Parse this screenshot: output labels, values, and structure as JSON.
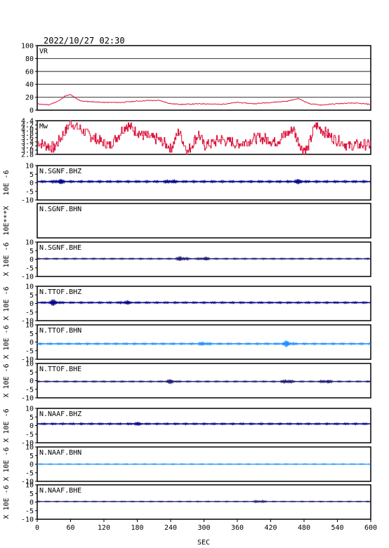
{
  "header": {
    "timestamp": "2022/10/27 02:30"
  },
  "x_axis": {
    "label": "SEC",
    "ticks": [
      "0",
      "60",
      "120",
      "180",
      "240",
      "300",
      "360",
      "420",
      "480",
      "540",
      "600"
    ],
    "range": [
      0,
      600
    ]
  },
  "chart_data": [
    {
      "type": "line",
      "label": "VR",
      "color": "#dc143c",
      "ylim": [
        0,
        100
      ],
      "yticks": [
        "0",
        "20",
        "40",
        "60",
        "80",
        "100"
      ],
      "grid": true,
      "x": [
        0,
        20,
        40,
        50,
        60,
        70,
        80,
        100,
        120,
        150,
        180,
        200,
        220,
        240,
        260,
        300,
        330,
        360,
        390,
        420,
        450,
        470,
        490,
        510,
        540,
        570,
        600
      ],
      "values": [
        10,
        8,
        15,
        22,
        24,
        18,
        14,
        13,
        12,
        12,
        14,
        15,
        15,
        10,
        9,
        10,
        9,
        12,
        10,
        12,
        14,
        18,
        10,
        8,
        10,
        11,
        9
      ]
    },
    {
      "type": "line",
      "label": "Mw",
      "color": "#dc143c",
      "ylim": [
        2.8,
        4.4
      ],
      "yticks": [
        "2.8",
        "3.0",
        "3.2",
        "3.4",
        "3.6",
        "3.8",
        "4.0",
        "4.2",
        "4.4"
      ],
      "x": [
        0,
        30,
        60,
        100,
        130,
        160,
        190,
        220,
        240,
        255,
        270,
        290,
        300,
        330,
        360,
        400,
        430,
        460,
        475,
        485,
        500,
        530,
        560,
        600
      ],
      "values": [
        3.4,
        3.1,
        4.3,
        3.6,
        3.2,
        4.2,
        3.7,
        3.5,
        3.1,
        3.9,
        2.9,
        3.8,
        3.2,
        3.5,
        3.3,
        3.6,
        3.4,
        4.0,
        3.1,
        3.0,
        4.2,
        3.6,
        3.2,
        3.3
      ]
    },
    {
      "type": "line",
      "label": "N.SGNF.BHZ",
      "color": "#00008b",
      "ylim": [
        -10,
        10
      ],
      "yticks": [
        "-10",
        "-5",
        "0",
        "5",
        "10"
      ],
      "ylabel": "10E -6",
      "offset": 0.7,
      "amplitude": 0.6,
      "bursts": [
        [
          40,
          1.2
        ],
        [
          240,
          0.9
        ],
        [
          470,
          1.0
        ]
      ]
    },
    {
      "type": "line",
      "label": "N.SGNF.BHN",
      "color": "#00008b",
      "ylabel": "10E***X",
      "empty": true
    },
    {
      "type": "line",
      "label": "N.SGNF.BHE",
      "color": "#191970",
      "ylim": [
        -10,
        10
      ],
      "yticks": [
        "-10",
        "-5",
        "0",
        "5",
        "10"
      ],
      "ylabel": "X  10E -6",
      "offset": 0.3,
      "amplitude": 0.4,
      "bursts": [
        [
          260,
          1.2
        ],
        [
          300,
          0.8
        ]
      ]
    },
    {
      "type": "line",
      "label": "N.TTOF.BHZ",
      "color": "#00008b",
      "ylim": [
        -10,
        10
      ],
      "yticks": [
        "-10",
        "-5",
        "0",
        "5",
        "10"
      ],
      "ylabel": "X  10E -6",
      "offset": 0.5,
      "amplitude": 0.5,
      "bursts": [
        [
          30,
          1.5
        ],
        [
          160,
          0.8
        ]
      ]
    },
    {
      "type": "line",
      "label": "N.TTOF.BHN",
      "color": "#1e90ff",
      "ylim": [
        -10,
        10
      ],
      "yticks": [
        "-10",
        "-5",
        "0",
        "5",
        "10"
      ],
      "ylabel": "X  10E -6",
      "offset": -1.0,
      "amplitude": 0.5,
      "bursts": [
        [
          300,
          0.8
        ],
        [
          450,
          1.6
        ]
      ]
    },
    {
      "type": "line",
      "label": "N.TTOF.BHE",
      "color": "#191970",
      "ylim": [
        -10,
        10
      ],
      "yticks": [
        "-10",
        "-5",
        "0",
        "5",
        "10"
      ],
      "ylabel": "X  10E -6",
      "offset": -0.5,
      "amplitude": 0.4,
      "bursts": [
        [
          240,
          1.0
        ],
        [
          450,
          1.1
        ],
        [
          520,
          0.9
        ]
      ]
    },
    {
      "type": "line",
      "label": "N.NAAF.BHZ",
      "color": "#00008b",
      "ylim": [
        -10,
        10
      ],
      "yticks": [
        "-10",
        "-5",
        "0",
        "5",
        "10"
      ],
      "ylabel": "X  10E -6",
      "offset": 1.0,
      "amplitude": 0.5,
      "bursts": [
        [
          180,
          0.6
        ]
      ]
    },
    {
      "type": "line",
      "label": "N.NAAF.BHN",
      "color": "#1e90ff",
      "ylim": [
        -10,
        10
      ],
      "yticks": [
        "-10",
        "-5",
        "0",
        "5",
        "10"
      ],
      "ylabel": "X  10E -6",
      "offset": 0.0,
      "amplitude": 0.3,
      "bursts": []
    },
    {
      "type": "line",
      "label": "N.NAAF.BHE",
      "color": "#191970",
      "ylim": [
        -10,
        10
      ],
      "yticks": [
        "-10",
        "-5",
        "0",
        "5",
        "10"
      ],
      "ylabel": "X  10E -6",
      "offset": 0.3,
      "amplitude": 0.3,
      "bursts": [
        [
          400,
          0.6
        ]
      ]
    }
  ]
}
